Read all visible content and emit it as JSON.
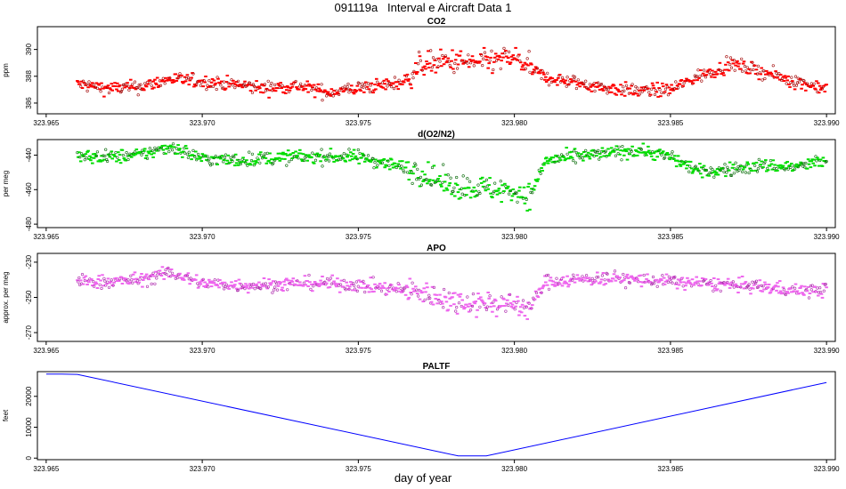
{
  "figure_title": "091119a   Interval e Aircraft Data 1",
  "xlabel": "day of year",
  "chart_data": [
    {
      "type": "scatter",
      "title": "CO2",
      "ylabel": "ppm",
      "xlim": [
        323.965,
        323.99
      ],
      "ylim": [
        385.2,
        391.7
      ],
      "xticks": [
        "323.965",
        "323.970",
        "323.975",
        "323.980",
        "323.985",
        "323.990"
      ],
      "yticks": [
        "386",
        "388",
        "390"
      ],
      "colors": [
        "#ff0000",
        "#a00000"
      ],
      "x": [
        323.966,
        323.967,
        323.968,
        323.969,
        323.97,
        323.971,
        323.972,
        323.973,
        323.974,
        323.975,
        323.976,
        323.9765,
        323.977,
        323.978,
        323.979,
        323.98,
        323.9805,
        323.981,
        323.982,
        323.983,
        323.984,
        323.985,
        323.986,
        323.987,
        323.988,
        323.989,
        323.99
      ],
      "y": [
        387.4,
        387.1,
        387.2,
        387.8,
        387.6,
        387.4,
        387.1,
        387.3,
        386.8,
        387.1,
        387.4,
        387.6,
        388.9,
        389.1,
        389.0,
        389.4,
        388.6,
        387.9,
        387.5,
        387.1,
        386.9,
        387.0,
        388.1,
        388.9,
        388.3,
        387.6,
        387.1
      ]
    },
    {
      "type": "scatter",
      "title": "d(O2/N2)",
      "ylabel": "per meg",
      "xlim": [
        323.965,
        323.99
      ],
      "ylim": [
        -482,
        -431
      ],
      "xticks": [
        "323.965",
        "323.970",
        "323.975",
        "323.980",
        "323.985",
        "323.990"
      ],
      "yticks": [
        "-480",
        "-460",
        "-440"
      ],
      "colors": [
        "#00dd00",
        "#006600"
      ],
      "x": [
        323.966,
        323.967,
        323.968,
        323.969,
        323.97,
        323.971,
        323.972,
        323.973,
        323.974,
        323.975,
        323.976,
        323.977,
        323.978,
        323.979,
        323.98,
        323.9805,
        323.981,
        323.982,
        323.983,
        323.984,
        323.985,
        323.986,
        323.987,
        323.988,
        323.989,
        323.99
      ],
      "y": [
        -441,
        -441,
        -440,
        -435,
        -442,
        -443,
        -442,
        -441,
        -441,
        -441,
        -445,
        -450,
        -458,
        -459,
        -461,
        -464,
        -443,
        -441,
        -439,
        -437,
        -441,
        -450,
        -448,
        -446,
        -447,
        -443
      ]
    },
    {
      "type": "scatter",
      "title": "APO",
      "ylabel": "approx. per meg",
      "xlim": [
        323.965,
        323.99
      ],
      "ylim": [
        -275,
        -225
      ],
      "xticks": [
        "323.965",
        "323.970",
        "323.975",
        "323.980",
        "323.985",
        "323.990"
      ],
      "yticks": [
        "-270",
        "-250",
        "-230"
      ],
      "colors": [
        "#ee66ee",
        "#aa22aa"
      ],
      "x": [
        323.966,
        323.967,
        323.968,
        323.969,
        323.97,
        323.971,
        323.972,
        323.973,
        323.974,
        323.975,
        323.976,
        323.977,
        323.978,
        323.979,
        323.98,
        323.9805,
        323.981,
        323.982,
        323.983,
        323.984,
        323.985,
        323.986,
        323.987,
        323.988,
        323.989,
        323.99
      ],
      "y": [
        -241,
        -241,
        -240,
        -236,
        -242,
        -243,
        -243,
        -242,
        -242,
        -243,
        -245,
        -247,
        -252,
        -253,
        -254,
        -256,
        -241,
        -240,
        -239,
        -240,
        -241,
        -242,
        -243,
        -244,
        -246,
        -246
      ]
    },
    {
      "type": "line",
      "title": "PALTF",
      "ylabel": "feet",
      "xlim": [
        323.965,
        323.99
      ],
      "ylim": [
        -500,
        28000
      ],
      "xticks": [
        "323.965",
        "323.970",
        "323.975",
        "323.980",
        "323.985",
        "323.990"
      ],
      "yticks": [
        "0",
        "10000",
        "20000"
      ],
      "colors": [
        "#0000ff"
      ],
      "x": [
        323.965,
        323.9655,
        323.966,
        323.9782,
        323.9791,
        323.99
      ],
      "y": [
        27200,
        27200,
        27100,
        700,
        700,
        24500
      ]
    }
  ]
}
